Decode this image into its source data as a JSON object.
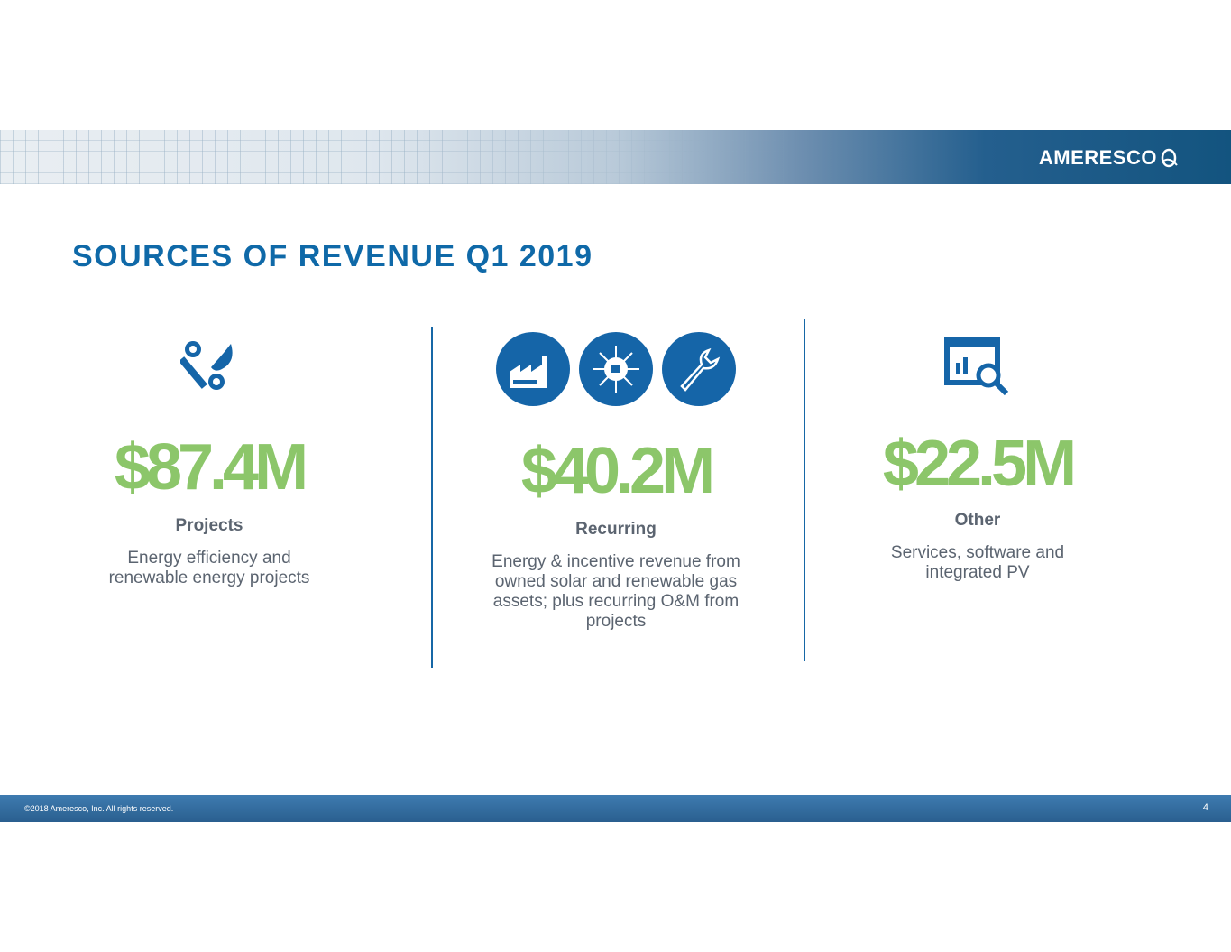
{
  "header": {
    "logo_text": "AMERESCO",
    "brand_color": "#13547f"
  },
  "title": "SOURCES OF REVENUE Q1 2019",
  "columns": [
    {
      "value": "$87.4M",
      "label": "Projects",
      "description": "Energy efficiency and renewable energy projects",
      "icons": [
        "wrench-leaf-icon"
      ]
    },
    {
      "value": "$40.2M",
      "label": "Recurring",
      "description": "Energy & incentive revenue from owned solar and renewable gas assets; plus recurring O&M from projects",
      "icons": [
        "factory-icon",
        "sun-plug-icon",
        "wrench-icon"
      ]
    },
    {
      "value": "$22.5M",
      "label": "Other",
      "description": "Services, software and integrated PV",
      "icons": [
        "chart-search-icon"
      ]
    }
  ],
  "colors": {
    "accent_blue": "#0f69a8",
    "value_green": "#8cc66a",
    "text_gray": "#5b6470"
  },
  "footer": {
    "copyright": "©2018 Ameresco, Inc. All rights reserved.",
    "page": "4"
  }
}
